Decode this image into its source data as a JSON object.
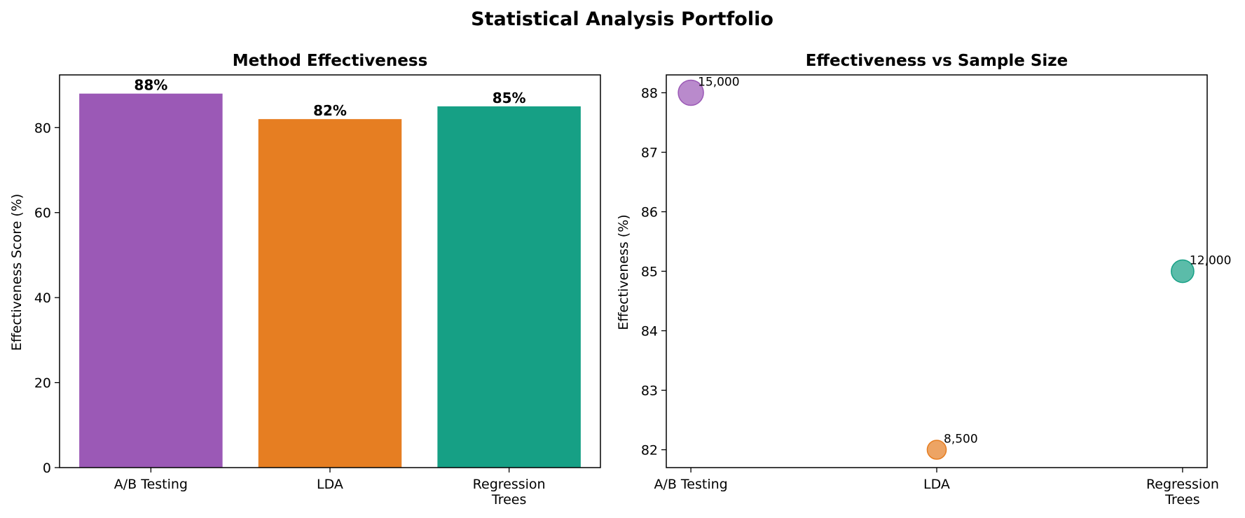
{
  "figure": {
    "title": "Statistical Analysis Portfolio"
  },
  "chart_data": [
    {
      "type": "bar",
      "title": "Method Effectiveness",
      "xlabel": "",
      "ylabel": "Effectiveness Score (%)",
      "categories": [
        [
          "A/B Testing"
        ],
        [
          "LDA"
        ],
        [
          "Regression",
          "Trees"
        ]
      ],
      "values": [
        88,
        82,
        85
      ],
      "value_labels": [
        "88%",
        "82%",
        "85%"
      ],
      "colors": [
        "#9b59b6",
        "#e67e22",
        "#16a085"
      ],
      "ylim": [
        0,
        92.4
      ],
      "yticks": [
        0,
        20,
        40,
        60,
        80
      ],
      "grid": false,
      "legend": "none"
    },
    {
      "type": "scatter",
      "title": "Effectiveness vs Sample Size",
      "xlabel": "",
      "ylabel": "Effectiveness (%)",
      "categories": [
        [
          "A/B Testing"
        ],
        [
          "LDA"
        ],
        [
          "Regression",
          "Trees"
        ]
      ],
      "y": [
        88,
        82,
        85
      ],
      "sample_size": [
        15000,
        8500,
        12000
      ],
      "point_labels": [
        "15,000",
        "8,500",
        "12,000"
      ],
      "colors": [
        "#9b59b6",
        "#e67e22",
        "#16a085"
      ],
      "ylim": [
        81.7,
        88.3
      ],
      "yticks": [
        82,
        83,
        84,
        85,
        86,
        87,
        88
      ],
      "grid": false,
      "legend": "none"
    }
  ]
}
